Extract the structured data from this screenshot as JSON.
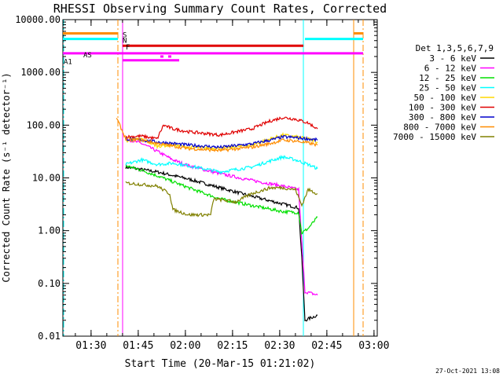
{
  "chart_data": {
    "type": "line",
    "title": "RHESSI Observing Summary Count Rates, Corrected",
    "xlabel": "Start Time (20-Mar-15 01:21:02)",
    "ylabel": "Corrected Count Rate (s⁻¹ detector⁻¹)",
    "yscale": "log",
    "ylim": [
      0.01,
      10000
    ],
    "xlim_minutes_after_start": [
      0,
      100
    ],
    "y_ticks": [
      "0.01",
      "0.10",
      "1.00",
      "10.00",
      "100.00",
      "1000.00",
      "10000.00"
    ],
    "x_ticks": [
      {
        "label": "01:30",
        "t": 8.97
      },
      {
        "label": "01:45",
        "t": 23.97
      },
      {
        "label": "02:00",
        "t": 38.97
      },
      {
        "label": "02:15",
        "t": 53.97
      },
      {
        "label": "02:30",
        "t": 68.97
      },
      {
        "label": "02:45",
        "t": 83.97
      },
      {
        "label": "03:00",
        "t": 98.97
      }
    ],
    "legend_title": "Det 1,3,5,6,7,9",
    "legend_position": "right",
    "series": [
      {
        "name": "3 - 6 keV",
        "color": "#000000",
        "points": [
          [
            20,
            16
          ],
          [
            30,
            13
          ],
          [
            40,
            9.5
          ],
          [
            50,
            6.5
          ],
          [
            60,
            4.5
          ],
          [
            70,
            3.2
          ],
          [
            75,
            2.7
          ],
          [
            76,
            0.3
          ],
          [
            77,
            0.02
          ],
          [
            81,
            0.025
          ]
        ]
      },
      {
        "name": "6 - 12 keV",
        "color": "#ff00ff",
        "points": [
          [
            20,
            55
          ],
          [
            25,
            45
          ],
          [
            30,
            32
          ],
          [
            35,
            22
          ],
          [
            40,
            17
          ],
          [
            50,
            12
          ],
          [
            60,
            9
          ],
          [
            70,
            7
          ],
          [
            75,
            6
          ],
          [
            76,
            0.6
          ],
          [
            77,
            0.07
          ],
          [
            81,
            0.06
          ]
        ]
      },
      {
        "name": "12 - 25 keV",
        "color": "#00e000",
        "points": [
          [
            20,
            17
          ],
          [
            25,
            14
          ],
          [
            30,
            11
          ],
          [
            40,
            6.5
          ],
          [
            50,
            4
          ],
          [
            60,
            3
          ],
          [
            70,
            2.3
          ],
          [
            75,
            2.2
          ],
          [
            76,
            0.9
          ],
          [
            78,
            1.1
          ],
          [
            81,
            1.8
          ]
        ]
      },
      {
        "name": "25 - 50 keV",
        "color": "#00ffff",
        "points": [
          [
            20,
            18
          ],
          [
            25,
            22
          ],
          [
            30,
            18
          ],
          [
            35,
            19
          ],
          [
            40,
            17
          ],
          [
            50,
            13
          ],
          [
            60,
            16
          ],
          [
            66,
            21
          ],
          [
            70,
            25
          ],
          [
            74,
            22
          ],
          [
            78,
            18
          ],
          [
            81,
            15
          ]
        ]
      },
      {
        "name": "50 - 100 keV",
        "color": "#ffd800",
        "points": [
          [
            20,
            50
          ],
          [
            25,
            55
          ],
          [
            30,
            40
          ],
          [
            35,
            42
          ],
          [
            40,
            38
          ],
          [
            50,
            36
          ],
          [
            60,
            42
          ],
          [
            66,
            55
          ],
          [
            70,
            65
          ],
          [
            74,
            60
          ],
          [
            78,
            55
          ],
          [
            81,
            48
          ]
        ]
      },
      {
        "name": "100 - 300 keV",
        "color": "#e00000",
        "points": [
          [
            20,
            60
          ],
          [
            25,
            62
          ],
          [
            30,
            55
          ],
          [
            32,
            100
          ],
          [
            35,
            85
          ],
          [
            40,
            75
          ],
          [
            50,
            65
          ],
          [
            60,
            85
          ],
          [
            66,
            120
          ],
          [
            70,
            140
          ],
          [
            74,
            130
          ],
          [
            78,
            110
          ],
          [
            81,
            85
          ]
        ]
      },
      {
        "name": "300 - 800 keV",
        "color": "#0000cc",
        "points": [
          [
            20,
            55
          ],
          [
            25,
            52
          ],
          [
            30,
            48
          ],
          [
            35,
            45
          ],
          [
            40,
            42
          ],
          [
            50,
            38
          ],
          [
            60,
            44
          ],
          [
            66,
            52
          ],
          [
            70,
            60
          ],
          [
            74,
            58
          ],
          [
            78,
            55
          ],
          [
            81,
            52
          ]
        ]
      },
      {
        "name": "800 - 7000 keV",
        "color": "#ff8c00",
        "points": [
          [
            17,
            140
          ],
          [
            20,
            55
          ],
          [
            25,
            52
          ],
          [
            30,
            45
          ],
          [
            35,
            40
          ],
          [
            40,
            36
          ],
          [
            50,
            33
          ],
          [
            60,
            38
          ],
          [
            66,
            45
          ],
          [
            70,
            52
          ],
          [
            74,
            50
          ],
          [
            78,
            46
          ],
          [
            81,
            42
          ]
        ]
      },
      {
        "name": "7000 - 15000 keV",
        "color": "#808000",
        "points": [
          [
            20,
            8
          ],
          [
            25,
            7.5
          ],
          [
            30,
            7
          ],
          [
            34,
            5
          ],
          [
            35,
            2.5
          ],
          [
            40,
            2
          ],
          [
            47,
            2
          ],
          [
            48,
            4
          ],
          [
            55,
            3.5
          ],
          [
            60,
            5
          ],
          [
            66,
            6.5
          ],
          [
            70,
            6.5
          ],
          [
            74,
            6
          ],
          [
            76,
            3
          ],
          [
            78,
            6
          ],
          [
            81,
            5
          ]
        ]
      }
    ],
    "flags": [
      {
        "label": "S",
        "color": "#ff8c00",
        "y": 5500,
        "segments": [
          [
            0,
            17.5
          ],
          [
            92.5,
            95.5
          ]
        ]
      },
      {
        "label": "N",
        "color": "#00ffff",
        "y": 4300,
        "segments": [
          [
            0,
            17.5
          ],
          [
            77,
            95.5
          ]
        ]
      },
      {
        "label": "F",
        "color": "#e00000",
        "y": 3200,
        "segments": [
          [
            19,
            76.5
          ]
        ]
      },
      {
        "label": "AS",
        "color": "#ff00ff",
        "y": 2300,
        "segments": [
          [
            0,
            95.5
          ]
        ]
      },
      {
        "label": "",
        "color": "#ff00ff",
        "y": 2000,
        "segments": [
          [
            31,
            32
          ],
          [
            33.5,
            34.5
          ]
        ]
      },
      {
        "label": "A1",
        "color": "#ff00ff",
        "y": 1700,
        "segments": [
          [
            19,
            37
          ]
        ]
      }
    ],
    "vertical_markers": [
      {
        "t": 0,
        "color": "#00ffff",
        "style": "dashdot"
      },
      {
        "t": 17.5,
        "color": "#ff8c00",
        "style": "dashdot"
      },
      {
        "t": 19,
        "color": "#ff00ff",
        "style": "solid"
      },
      {
        "t": 76.5,
        "color": "#00ffff",
        "style": "solid"
      },
      {
        "t": 92.5,
        "color": "#ff8c00",
        "style": "solid"
      },
      {
        "t": 95.5,
        "color": "#ff8c00",
        "style": "dashdot"
      }
    ],
    "footer_date": "27-Oct-2021 13:08"
  }
}
